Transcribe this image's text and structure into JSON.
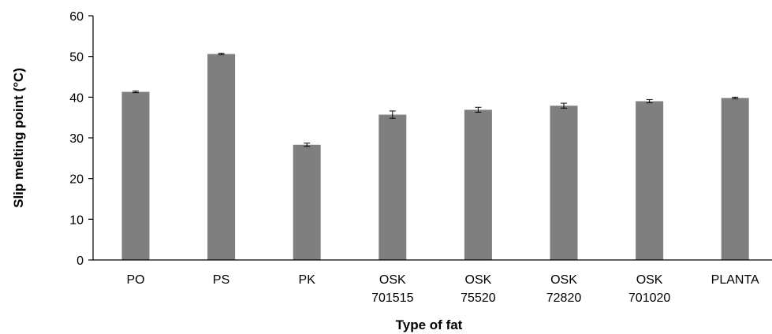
{
  "chart_data": {
    "type": "bar",
    "title": "",
    "xlabel": "Type of fat",
    "ylabel": "Slip melting point (°C)",
    "ylim": [
      0,
      60
    ],
    "yticks": [
      0,
      10,
      20,
      30,
      40,
      50,
      60
    ],
    "grid": false,
    "legend": "none",
    "bar_color": "#7f7f7f",
    "categories": [
      [
        "PO"
      ],
      [
        "PS"
      ],
      [
        "PK"
      ],
      [
        "OSK",
        "701515"
      ],
      [
        "OSK",
        "75520"
      ],
      [
        "OSK",
        "72820"
      ],
      [
        "OSK",
        "701020"
      ],
      [
        "PLANTA"
      ]
    ],
    "values": [
      41.3,
      50.6,
      28.3,
      35.7,
      36.9,
      37.9,
      39.0,
      39.8
    ],
    "errors": [
      0.2,
      0.2,
      0.4,
      0.9,
      0.6,
      0.6,
      0.4,
      0.2
    ]
  }
}
